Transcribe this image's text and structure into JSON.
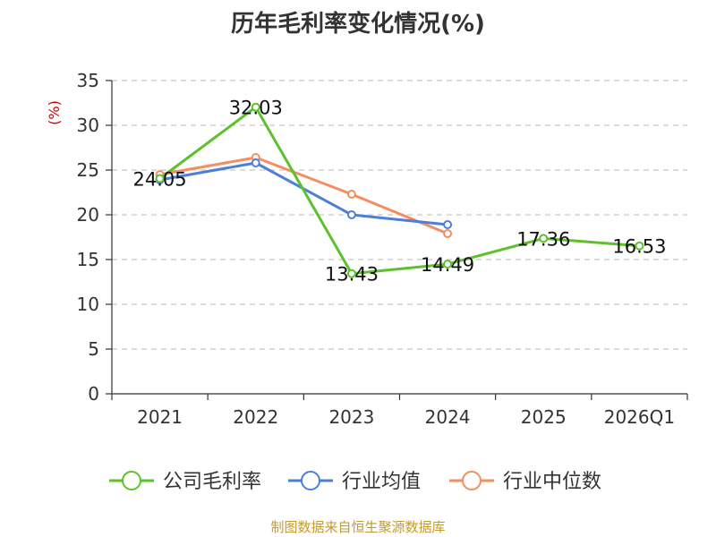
{
  "title": "历年毛利率变化情况(%)",
  "footer": "制图数据来自恒生聚源数据库",
  "chart_data": {
    "type": "line",
    "title": "历年毛利率变化情况(%)",
    "ylabel": "(%)",
    "xlabel": "",
    "ylim": [
      0,
      35
    ],
    "yticks": [
      0,
      5,
      10,
      15,
      20,
      25,
      30,
      35
    ],
    "categories": [
      "2021",
      "2022",
      "2023",
      "2024",
      "2025",
      "2026Q1"
    ],
    "grid": true,
    "legend_position": "bottom",
    "series": [
      {
        "name": "公司毛利率",
        "color": "#5cc12b",
        "values": [
          24.05,
          32.03,
          13.43,
          14.49,
          17.36,
          16.53
        ],
        "labels": true
      },
      {
        "name": "行业均值",
        "color": "#4e7fd8",
        "values": [
          23.9,
          25.8,
          20.0,
          18.9,
          null,
          null
        ],
        "labels": false
      },
      {
        "name": "行业中位数",
        "color": "#f58d5e",
        "values": [
          24.5,
          26.4,
          22.3,
          17.9,
          null,
          null
        ],
        "labels": false
      }
    ]
  }
}
